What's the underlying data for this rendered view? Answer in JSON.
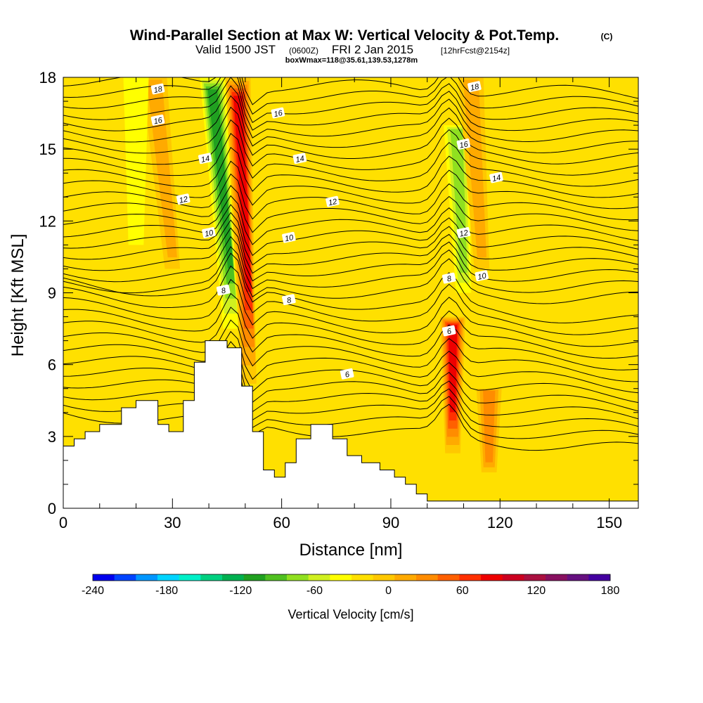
{
  "header": {
    "title": "Wind-Parallel Section at Max W: Vertical Velocity & Pot.Temp.",
    "title_suffix": "(C)",
    "valid_line": "Valid 1500 JST",
    "utc": "(0600Z)",
    "date": "FRI 2 Jan 2015",
    "forecast": "[12hrFcst@2154z]",
    "box_info": "boxWmax=118@35.61,139.53,1278m"
  },
  "chart_data": {
    "type": "heatmap",
    "xlabel": "Distance [nm]",
    "ylabel": "Height [Kft MSL]",
    "xlim": [
      0,
      158
    ],
    "ylim": [
      0,
      18
    ],
    "x_ticks": [
      "0",
      "30",
      "60",
      "90",
      "120",
      "150"
    ],
    "y_ticks": [
      "0",
      "3",
      "6",
      "9",
      "12",
      "15",
      "18"
    ],
    "terrain": {
      "x": [
        0,
        3,
        3,
        6,
        6,
        10,
        10,
        16,
        16,
        20,
        20,
        26,
        26,
        29,
        29,
        33,
        33,
        36,
        36,
        39,
        39,
        45,
        45,
        49,
        49,
        52,
        52,
        55,
        55,
        58,
        58,
        61,
        61,
        64,
        64,
        68,
        68,
        74,
        74,
        78,
        78,
        82,
        82,
        87,
        87,
        91,
        91,
        94,
        94,
        97,
        97,
        100,
        100,
        104,
        104,
        108,
        108,
        158
      ],
      "y": [
        2.6,
        2.6,
        2.9,
        2.9,
        3.2,
        3.2,
        3.5,
        3.5,
        4.2,
        4.2,
        4.5,
        4.5,
        3.5,
        3.5,
        3.2,
        3.2,
        4.5,
        4.5,
        6.1,
        6.1,
        7.0,
        7.0,
        6.7,
        6.7,
        5.1,
        5.1,
        3.2,
        3.2,
        1.6,
        1.6,
        1.3,
        1.3,
        1.9,
        1.9,
        2.9,
        2.9,
        3.5,
        3.5,
        2.9,
        2.9,
        2.2,
        2.2,
        1.9,
        1.9,
        1.6,
        1.6,
        1.3,
        1.3,
        1.0,
        1.0,
        0.6,
        0.6,
        0.3,
        0.3,
        0.3,
        0.3,
        0.3,
        0.3
      ]
    },
    "vertical_velocity_features": [
      {
        "kind": "downdraft",
        "x_bottom": 46,
        "x_top": 41,
        "y_bottom": 7.5,
        "y_top": 18,
        "min_cm_s": -110
      },
      {
        "kind": "updraft",
        "x_bottom": 51,
        "x_top": 48,
        "y_bottom": 5.2,
        "y_top": 18,
        "max_cm_s": 118
      },
      {
        "kind": "updraft",
        "x_bottom": 107,
        "x_top": 107,
        "y_bottom": 2.3,
        "y_top": 8.0,
        "max_cm_s": 110
      },
      {
        "kind": "downdraft",
        "x_bottom": 110,
        "x_top": 108,
        "y_bottom": 9.0,
        "y_top": 16,
        "min_cm_s": -50
      },
      {
        "kind": "updraft",
        "x_bottom": 117,
        "x_top": 117,
        "y_bottom": 1.5,
        "y_top": 5.0,
        "max_cm_s": 50
      },
      {
        "kind": "weak-updraft",
        "x_bottom": 30,
        "x_top": 25,
        "y_bottom": 10,
        "y_top": 18,
        "max_cm_s": 30
      },
      {
        "kind": "weak-updraft",
        "x_bottom": 115,
        "x_top": 112,
        "y_bottom": 10,
        "y_top": 18,
        "max_cm_s": 35
      },
      {
        "kind": "weak-downdraft",
        "x_bottom": 20,
        "x_top": 20,
        "y_bottom": 11,
        "y_top": 18,
        "min_cm_s": -25
      }
    ],
    "isentropes": [
      {
        "label": "6",
        "level": 5.3
      },
      {
        "label": "8",
        "level": 7.6
      },
      {
        "label": "10",
        "level": 10.0
      },
      {
        "label": "12",
        "level": 12.4
      },
      {
        "label": "14",
        "level": 14.8
      },
      {
        "label": "16",
        "level": 16.2
      },
      {
        "label": "18",
        "level": 17.6
      }
    ],
    "contour_labels": [
      {
        "text": "18",
        "x": 26,
        "y": 17.5
      },
      {
        "text": "16",
        "x": 26,
        "y": 16.2
      },
      {
        "text": "14",
        "x": 39,
        "y": 14.6
      },
      {
        "text": "12",
        "x": 33,
        "y": 12.9
      },
      {
        "text": "10",
        "x": 40,
        "y": 11.5
      },
      {
        "text": "8",
        "x": 44,
        "y": 9.1
      },
      {
        "text": "16",
        "x": 59,
        "y": 16.5
      },
      {
        "text": "14",
        "x": 65,
        "y": 14.6
      },
      {
        "text": "12",
        "x": 74,
        "y": 12.8
      },
      {
        "text": "10",
        "x": 62,
        "y": 11.3
      },
      {
        "text": "8",
        "x": 62,
        "y": 8.7
      },
      {
        "text": "6",
        "x": 78,
        "y": 5.6
      },
      {
        "text": "18",
        "x": 113,
        "y": 17.6
      },
      {
        "text": "16",
        "x": 110,
        "y": 15.2
      },
      {
        "text": "14",
        "x": 119,
        "y": 13.8
      },
      {
        "text": "12",
        "x": 110,
        "y": 11.5
      },
      {
        "text": "10",
        "x": 115,
        "y": 9.7
      },
      {
        "text": "8",
        "x": 106,
        "y": 9.6
      },
      {
        "text": "6",
        "x": 106,
        "y": 7.4
      }
    ]
  },
  "colorbar": {
    "label": "Vertical Velocity [cm/s]",
    "ticks": [
      "-240",
      "-180",
      "-120",
      "-60",
      "0",
      "60",
      "120",
      "180"
    ],
    "colors": [
      "#0000ee",
      "#0044ff",
      "#0096ff",
      "#00d4ff",
      "#00f0c8",
      "#00d080",
      "#00b050",
      "#20a020",
      "#50c020",
      "#90e020",
      "#d0f020",
      "#ffff00",
      "#ffe000",
      "#ffc800",
      "#ffaa00",
      "#ff8c00",
      "#ff6000",
      "#ff3000",
      "#ee0000",
      "#cc0020",
      "#aa1040",
      "#881060",
      "#661080",
      "#4400a0"
    ]
  }
}
